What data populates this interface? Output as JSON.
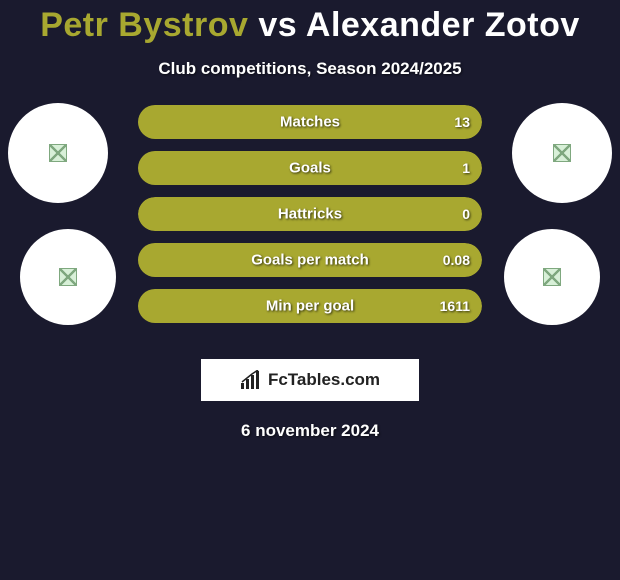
{
  "title": {
    "player1": "Petr Bystrov",
    "vs": "vs",
    "player2": "Alexander Zotov"
  },
  "subtitle": "Club competitions, Season 2024/2025",
  "colors": {
    "player1_accent": "#a8a830",
    "player2_accent": "#ffffff",
    "bar_left": "#a8a830",
    "bar_right": "#a8a830",
    "bar_bg": "#1a1a2e",
    "background": "#1a1a2e"
  },
  "stats": [
    {
      "label": "Matches",
      "left_val": "",
      "right_val": "13",
      "left_pct": 2,
      "right_pct": 98
    },
    {
      "label": "Goals",
      "left_val": "",
      "right_val": "1",
      "left_pct": 2,
      "right_pct": 98
    },
    {
      "label": "Hattricks",
      "left_val": "",
      "right_val": "0",
      "left_pct": 50,
      "right_pct": 50
    },
    {
      "label": "Goals per match",
      "left_val": "",
      "right_val": "0.08",
      "left_pct": 2,
      "right_pct": 98
    },
    {
      "label": "Min per goal",
      "left_val": "",
      "right_val": "1611",
      "left_pct": 2,
      "right_pct": 98
    }
  ],
  "brand": "FcTables.com",
  "date": "6 november 2024"
}
